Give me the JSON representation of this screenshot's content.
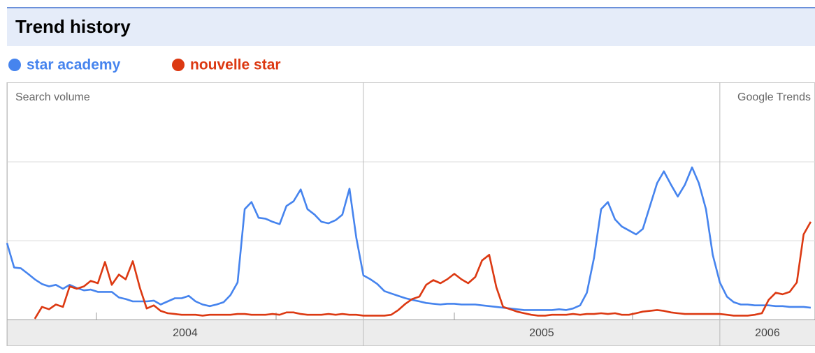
{
  "chart_data": {
    "type": "line",
    "title": "Trend history",
    "ylabel": "Search volume",
    "source": "Google Trends",
    "xlim": [
      2004,
      2006.267
    ],
    "xticks": [
      2004,
      2005,
      2006
    ],
    "ylim": [
      0,
      3
    ],
    "grid": true,
    "x": [
      2004.0,
      2004.02,
      2004.039,
      2004.059,
      2004.078,
      2004.098,
      2004.118,
      2004.137,
      2004.157,
      2004.176,
      2004.196,
      2004.216,
      2004.235,
      2004.255,
      2004.275,
      2004.294,
      2004.314,
      2004.333,
      2004.353,
      2004.373,
      2004.392,
      2004.412,
      2004.431,
      2004.451,
      2004.471,
      2004.49,
      2004.51,
      2004.529,
      2004.549,
      2004.569,
      2004.588,
      2004.608,
      2004.627,
      2004.647,
      2004.667,
      2004.686,
      2004.706,
      2004.725,
      2004.745,
      2004.765,
      2004.784,
      2004.804,
      2004.824,
      2004.843,
      2004.863,
      2004.882,
      2004.902,
      2004.922,
      2004.941,
      2004.961,
      2004.98,
      2005.0,
      2005.02,
      2005.039,
      2005.059,
      2005.078,
      2005.098,
      2005.118,
      2005.137,
      2005.157,
      2005.176,
      2005.196,
      2005.216,
      2005.235,
      2005.255,
      2005.275,
      2005.294,
      2005.314,
      2005.333,
      2005.353,
      2005.373,
      2005.392,
      2005.412,
      2005.431,
      2005.451,
      2005.471,
      2005.49,
      2005.51,
      2005.529,
      2005.549,
      2005.569,
      2005.588,
      2005.608,
      2005.627,
      2005.647,
      2005.667,
      2005.686,
      2005.706,
      2005.725,
      2005.745,
      2005.765,
      2005.784,
      2005.804,
      2005.824,
      2005.843,
      2005.863,
      2005.882,
      2005.902,
      2005.922,
      2005.941,
      2005.961,
      2005.98,
      2006.0,
      2006.02,
      2006.039,
      2006.059,
      2006.078,
      2006.098,
      2006.118,
      2006.137,
      2006.157,
      2006.176,
      2006.196,
      2006.216,
      2006.235,
      2006.255
    ],
    "series": [
      {
        "name": "star academy",
        "color": "#4684ee",
        "values": [
          0.97,
          0.66,
          0.65,
          0.58,
          0.51,
          0.45,
          0.42,
          0.44,
          0.39,
          0.44,
          0.4,
          0.37,
          0.38,
          0.35,
          0.35,
          0.35,
          0.28,
          0.26,
          0.23,
          0.23,
          0.23,
          0.24,
          0.19,
          0.23,
          0.27,
          0.27,
          0.3,
          0.23,
          0.19,
          0.17,
          0.19,
          0.22,
          0.31,
          0.47,
          1.4,
          1.49,
          1.29,
          1.28,
          1.24,
          1.21,
          1.44,
          1.5,
          1.65,
          1.4,
          1.33,
          1.24,
          1.22,
          1.26,
          1.33,
          1.66,
          1.04,
          0.56,
          0.51,
          0.45,
          0.36,
          0.33,
          0.3,
          0.27,
          0.25,
          0.23,
          0.21,
          0.2,
          0.19,
          0.2,
          0.2,
          0.19,
          0.19,
          0.19,
          0.18,
          0.17,
          0.16,
          0.15,
          0.14,
          0.13,
          0.12,
          0.12,
          0.12,
          0.12,
          0.12,
          0.13,
          0.12,
          0.14,
          0.18,
          0.34,
          0.78,
          1.4,
          1.49,
          1.27,
          1.18,
          1.13,
          1.08,
          1.15,
          1.44,
          1.73,
          1.88,
          1.71,
          1.56,
          1.71,
          1.93,
          1.73,
          1.4,
          0.82,
          0.47,
          0.29,
          0.22,
          0.19,
          0.19,
          0.18,
          0.18,
          0.18,
          0.17,
          0.17,
          0.16,
          0.16,
          0.16,
          0.15
        ]
      },
      {
        "name": "nouvelle star",
        "color": "#dc3912",
        "values": [
          null,
          null,
          null,
          null,
          0.01,
          0.16,
          0.13,
          0.19,
          0.16,
          0.42,
          0.39,
          0.42,
          0.49,
          0.46,
          0.73,
          0.44,
          0.57,
          0.51,
          0.74,
          0.4,
          0.14,
          0.18,
          0.11,
          0.08,
          0.07,
          0.06,
          0.06,
          0.06,
          0.05,
          0.06,
          0.06,
          0.06,
          0.06,
          0.07,
          0.07,
          0.06,
          0.06,
          0.06,
          0.07,
          0.06,
          0.09,
          0.09,
          0.07,
          0.06,
          0.06,
          0.06,
          0.07,
          0.06,
          0.07,
          0.06,
          0.06,
          0.05,
          0.05,
          0.05,
          0.05,
          0.06,
          0.12,
          0.2,
          0.26,
          0.29,
          0.44,
          0.5,
          0.46,
          0.51,
          0.58,
          0.51,
          0.46,
          0.54,
          0.75,
          0.82,
          0.41,
          0.16,
          0.13,
          0.1,
          0.08,
          0.06,
          0.05,
          0.05,
          0.06,
          0.06,
          0.06,
          0.07,
          0.06,
          0.07,
          0.07,
          0.08,
          0.07,
          0.08,
          0.06,
          0.06,
          0.08,
          0.1,
          0.11,
          0.12,
          0.11,
          0.09,
          0.08,
          0.07,
          0.07,
          0.07,
          0.07,
          0.07,
          0.07,
          0.06,
          0.05,
          0.05,
          0.05,
          0.06,
          0.08,
          0.25,
          0.34,
          0.32,
          0.35,
          0.47,
          1.08,
          1.24
        ]
      }
    ]
  }
}
